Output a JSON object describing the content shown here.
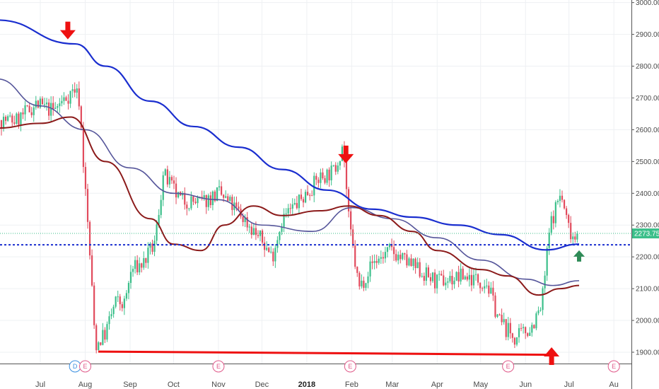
{
  "chart_data": {
    "type": "candlestick",
    "title": "",
    "xlabel": "",
    "ylabel": "",
    "ylim": [
      1860,
      3000
    ],
    "grid": true,
    "y_ticks": [
      1900,
      2000,
      2100,
      2200,
      2300,
      2400,
      2500,
      2600,
      2700,
      2800,
      2900,
      3000
    ],
    "y_tick_labels": [
      "1900.00",
      "2000.00",
      "2100.00",
      "2200.00",
      "2300.00",
      "2400.00",
      "2500.00",
      "2600.00",
      "2700.00",
      "2800.00",
      "2900.00",
      "3000.00"
    ],
    "x_tick_labels": [
      "Jul",
      "Aug",
      "Sep",
      "Oct",
      "Nov",
      "Dec",
      "2018",
      "Feb",
      "Mar",
      "Apr",
      "May",
      "Jun",
      "Jul",
      "Au"
    ],
    "last_price": 2273.75,
    "last_price_label": "2273.75",
    "horizontal_support": 2238,
    "support_line": {
      "from": "Aug",
      "to": "Jun",
      "price": 1900
    },
    "candle_colors": {
      "up": "#3bbf8a",
      "down": "#e14b5d"
    },
    "price_path": [
      [
        "2017-06-15",
        2630
      ],
      [
        "2017-06-28",
        2680
      ],
      [
        "2017-07-10",
        2660
      ],
      [
        "2017-07-25",
        2730
      ],
      [
        "2017-07-28",
        2690
      ],
      [
        "2017-07-31",
        2480
      ],
      [
        "2017-08-04",
        2220
      ],
      [
        "2017-08-08",
        1920
      ],
      [
        "2017-08-15",
        1960
      ],
      [
        "2017-08-22",
        2060
      ],
      [
        "2017-08-28",
        2050
      ],
      [
        "2017-09-02",
        2160
      ],
      [
        "2017-09-10",
        2180
      ],
      [
        "2017-09-18",
        2240
      ],
      [
        "2017-09-24",
        2460
      ],
      [
        "2017-10-05",
        2380
      ],
      [
        "2017-10-20",
        2370
      ],
      [
        "2017-11-01",
        2400
      ],
      [
        "2017-11-15",
        2340
      ],
      [
        "2017-12-01",
        2250
      ],
      [
        "2017-12-08",
        2200
      ],
      [
        "2017-12-15",
        2320
      ],
      [
        "2017-12-28",
        2380
      ],
      [
        "2018-01-10",
        2450
      ],
      [
        "2018-01-20",
        2470
      ],
      [
        "2018-01-26",
        2560
      ],
      [
        "2018-01-30",
        2310
      ],
      [
        "2018-02-06",
        2100
      ],
      [
        "2018-02-15",
        2180
      ],
      [
        "2018-02-28",
        2220
      ],
      [
        "2018-03-15",
        2170
      ],
      [
        "2018-04-01",
        2120
      ],
      [
        "2018-04-20",
        2140
      ],
      [
        "2018-05-05",
        2120
      ],
      [
        "2018-05-14",
        2000
      ],
      [
        "2018-05-25",
        1940
      ],
      [
        "2018-06-05",
        1980
      ],
      [
        "2018-06-12",
        2040
      ],
      [
        "2018-06-18",
        2300
      ],
      [
        "2018-06-25",
        2400
      ],
      [
        "2018-07-01",
        2290
      ],
      [
        "2018-07-06",
        2255
      ],
      [
        "2018-07-08",
        2273.75
      ]
    ],
    "series": [
      {
        "name": "",
        "color": "#1a2ecf",
        "points": [
          [
            "2017-06-01",
            2945
          ],
          [
            "2017-07-25",
            2870
          ],
          [
            "2017-08-15",
            2800
          ],
          [
            "2017-09-15",
            2690
          ],
          [
            "2017-10-15",
            2610
          ],
          [
            "2017-11-15",
            2545
          ],
          [
            "2017-12-15",
            2475
          ],
          [
            "2018-01-15",
            2410
          ],
          [
            "2018-02-15",
            2350
          ],
          [
            "2018-03-15",
            2325
          ],
          [
            "2018-04-15",
            2300
          ],
          [
            "2018-05-15",
            2270
          ],
          [
            "2018-06-15",
            2222
          ],
          [
            "2018-07-08",
            2240
          ]
        ]
      },
      {
        "name": "",
        "color": "#55559a",
        "points": [
          [
            "2017-06-01",
            2760
          ],
          [
            "2017-07-01",
            2675
          ],
          [
            "2017-08-01",
            2600
          ],
          [
            "2017-09-01",
            2480
          ],
          [
            "2017-10-01",
            2400
          ],
          [
            "2017-11-01",
            2380
          ],
          [
            "2017-12-01",
            2300
          ],
          [
            "2018-01-05",
            2280
          ],
          [
            "2018-02-01",
            2355
          ],
          [
            "2018-03-01",
            2320
          ],
          [
            "2018-04-01",
            2260
          ],
          [
            "2018-05-01",
            2190
          ],
          [
            "2018-06-01",
            2130
          ],
          [
            "2018-06-20",
            2110
          ],
          [
            "2018-07-08",
            2125
          ]
        ]
      },
      {
        "name": "",
        "color": "#8b1a1a",
        "points": [
          [
            "2017-06-01",
            2605
          ],
          [
            "2017-07-01",
            2620
          ],
          [
            "2017-07-22",
            2640
          ],
          [
            "2017-08-15",
            2500
          ],
          [
            "2017-09-15",
            2320
          ],
          [
            "2017-10-01",
            2240
          ],
          [
            "2017-10-20",
            2220
          ],
          [
            "2017-11-05",
            2300
          ],
          [
            "2017-11-25",
            2360
          ],
          [
            "2017-12-15",
            2330
          ],
          [
            "2018-01-10",
            2345
          ],
          [
            "2018-01-30",
            2360
          ],
          [
            "2018-02-20",
            2330
          ],
          [
            "2018-03-15",
            2280
          ],
          [
            "2018-04-01",
            2220
          ],
          [
            "2018-05-01",
            2160
          ],
          [
            "2018-05-20",
            2140
          ],
          [
            "2018-06-10",
            2080
          ],
          [
            "2018-06-25",
            2100
          ],
          [
            "2018-07-08",
            2110
          ]
        ]
      }
    ],
    "markers": [
      {
        "type": "arrow-down",
        "color": "#ee1111",
        "date": "2017-07-20",
        "price": 2940
      },
      {
        "type": "arrow-down",
        "color": "#ee1111",
        "date": "2018-01-28",
        "price": 2550
      },
      {
        "type": "arrow-up",
        "color": "#ee1111",
        "date": "2018-06-19",
        "price": 1860
      },
      {
        "type": "arrow-up",
        "color": "#2e8b57",
        "date": "2018-07-08",
        "price": 2185
      }
    ],
    "events": [
      {
        "label": "D",
        "color": "#3a8fe0",
        "date": "2017-07-25"
      },
      {
        "label": "E",
        "color": "#e05a8a",
        "date": "2017-08-01"
      },
      {
        "label": "E",
        "color": "#e05a8a",
        "date": "2017-11-01"
      },
      {
        "label": "E",
        "color": "#e05a8a",
        "date": "2018-01-31"
      },
      {
        "label": "E",
        "color": "#e05a8a",
        "date": "2018-05-20"
      },
      {
        "label": "E",
        "color": "#e05a8a",
        "date": "2018-08-01"
      }
    ]
  }
}
